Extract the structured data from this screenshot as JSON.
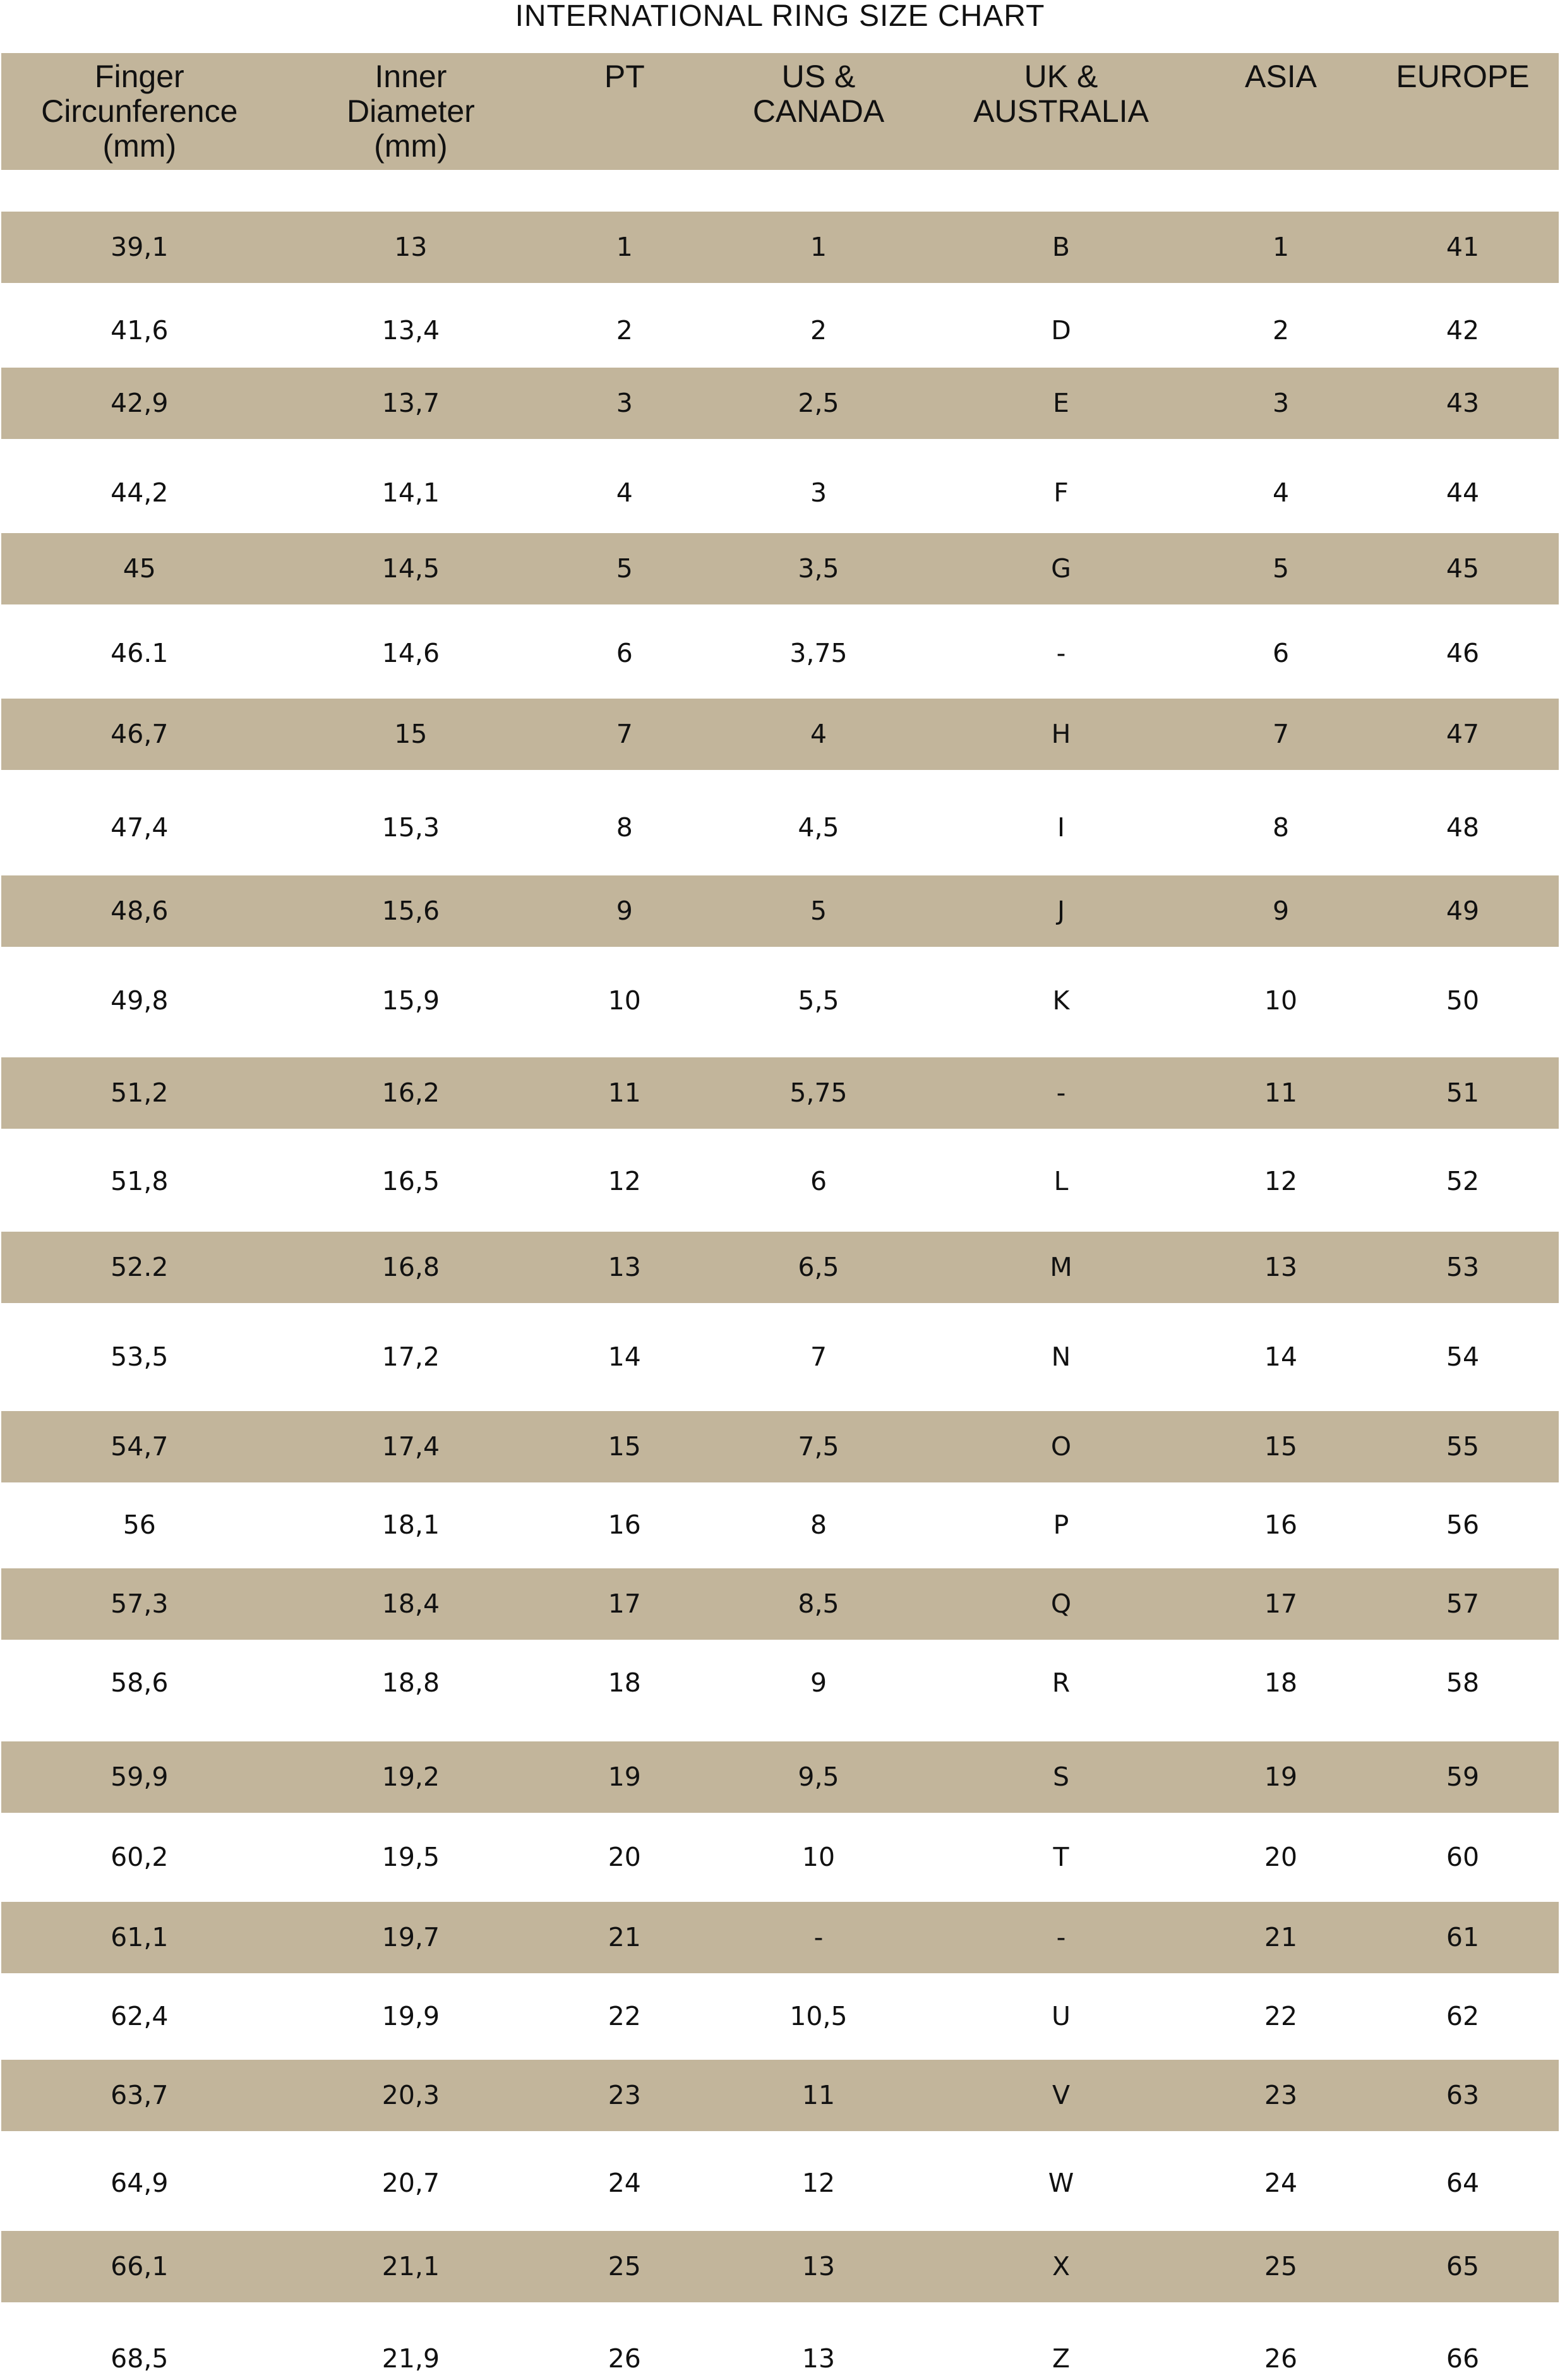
{
  "title": "INTERNATIONAL RING SIZE CHART",
  "band_color": "#c2b59b",
  "headers": [
    "Finger\nCircunference\n(mm)",
    "Inner\nDiameter\n(mm)",
    "PT",
    "US &\nCANADA",
    "UK &\nAUSTRALIA",
    "ASIA",
    "EUROPE"
  ],
  "rows": [
    [
      "39,1",
      "13",
      "1",
      "1",
      "B",
      "1",
      "41"
    ],
    [
      "41,6",
      "13,4",
      "2",
      "2",
      "D",
      "2",
      "42"
    ],
    [
      "42,9",
      "13,7",
      "3",
      "2,5",
      "E",
      "3",
      "43"
    ],
    [
      "44,2",
      "14,1",
      "4",
      "3",
      "F",
      "4",
      "44"
    ],
    [
      "45",
      "14,5",
      "5",
      "3,5",
      "G",
      "5",
      "45"
    ],
    [
      "46.1",
      "14,6",
      "6",
      "3,75",
      "-",
      "6",
      "46"
    ],
    [
      "46,7",
      "15",
      "7",
      "4",
      "H",
      "7",
      "47"
    ],
    [
      "47,4",
      "15,3",
      "8",
      "4,5",
      "I",
      "8",
      "48"
    ],
    [
      "48,6",
      "15,6",
      "9",
      "5",
      "J",
      "9",
      "49"
    ],
    [
      "49,8",
      "15,9",
      "10",
      "5,5",
      "K",
      "10",
      "50"
    ],
    [
      "51,2",
      "16,2",
      "11",
      "5,75",
      "-",
      "11",
      "51"
    ],
    [
      "51,8",
      "16,5",
      "12",
      "6",
      "L",
      "12",
      "52"
    ],
    [
      "52.2",
      "16,8",
      "13",
      "6,5",
      "M",
      "13",
      "53"
    ],
    [
      "53,5",
      "17,2",
      "14",
      "7",
      "N",
      "14",
      "54"
    ],
    [
      "54,7",
      "17,4",
      "15",
      "7,5",
      "O",
      "15",
      "55"
    ],
    [
      "56",
      "18,1",
      "16",
      "8",
      "P",
      "16",
      "56"
    ],
    [
      "57,3",
      "18,4",
      "17",
      "8,5",
      "Q",
      "17",
      "57"
    ],
    [
      "58,6",
      "18,8",
      "18",
      "9",
      "R",
      "18",
      "58"
    ],
    [
      "59,9",
      "19,2",
      "19",
      "9,5",
      "S",
      "19",
      "59"
    ],
    [
      "60,2",
      "19,5",
      "20",
      "10",
      "T",
      "20",
      "60"
    ],
    [
      "61,1",
      "19,7",
      "21",
      "-",
      "-",
      "21",
      "61"
    ],
    [
      "62,4",
      "19,9",
      "22",
      "10,5",
      "U",
      "22",
      "62"
    ],
    [
      "63,7",
      "20,3",
      "23",
      "11",
      "V",
      "23",
      "63"
    ],
    [
      "64,9",
      "20,7",
      "24",
      "12",
      "W",
      "24",
      "64"
    ],
    [
      "66,1",
      "21,1",
      "25",
      "13",
      "X",
      "25",
      "65"
    ],
    [
      "68,5",
      "21,9",
      "26",
      "13",
      "Z",
      "26",
      "66"
    ]
  ]
}
